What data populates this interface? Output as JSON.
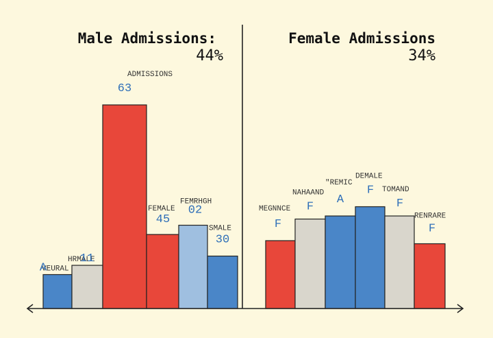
{
  "colors": {
    "background": "#fdf8de",
    "red": "#e8473a",
    "blue": "#4a86c8",
    "light_blue": "#9fbfe0",
    "gray": "#d9d6cc",
    "label_blue": "#2f6fb8"
  },
  "chart_data": [
    {
      "type": "bar",
      "title": "Male Admissions:",
      "subtitle": "44%",
      "ylim": [
        0,
        70
      ],
      "grid": false,
      "categories": [
        "VEURAL",
        "HRMALE",
        "ADMISSIONS",
        "FEMALE",
        "FEMRHGH",
        "SMALE"
      ],
      "value_labels": [
        "A",
        "11",
        "63",
        "45",
        "02",
        "30"
      ],
      "values": [
        11,
        14,
        66,
        24,
        27,
        17
      ],
      "colors": [
        "blue",
        "gray",
        "red",
        "red",
        "light_blue",
        "blue"
      ]
    },
    {
      "type": "bar",
      "title": "Female Admissions",
      "subtitle": "34%",
      "ylim": [
        0,
        70
      ],
      "grid": false,
      "categories": [
        "MEGNNCE",
        "NAHAAND",
        "\"REMIC",
        "DEMALE",
        "TOMAND",
        "RENRARE"
      ],
      "value_labels": [
        "F",
        "F",
        "A",
        "F",
        "F",
        "F"
      ],
      "values": [
        22,
        29,
        30,
        33,
        30,
        21
      ],
      "colors": [
        "red",
        "gray",
        "blue",
        "blue",
        "gray",
        "red"
      ]
    }
  ]
}
